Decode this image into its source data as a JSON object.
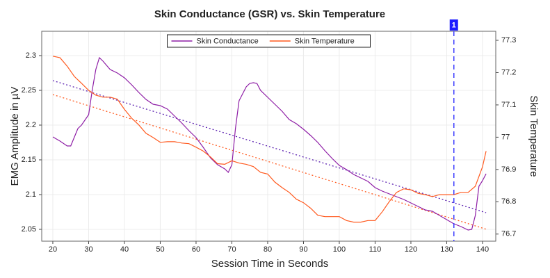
{
  "chart_data": {
    "type": "line",
    "title": "Skin Conductance (GSR) vs. Skin Temperature",
    "x_label": "Session Time in Seconds",
    "y_label": "EMG Amplitude in µV",
    "y2_label": "Skin Temperature",
    "xlim": [
      16.9,
      143.7
    ],
    "xticks": [
      20,
      30,
      40,
      50,
      60,
      70,
      80,
      90,
      100,
      110,
      120,
      130,
      140
    ],
    "ylim": [
      2.033,
      2.335
    ],
    "yticks": [
      2.05,
      2.1,
      2.15,
      2.2,
      2.25,
      2.3
    ],
    "y2lim": [
      76.678,
      77.328
    ],
    "y2ticks": [
      76.7,
      76.8,
      76.9,
      77,
      77.1,
      77.2,
      77.3
    ],
    "grid": true,
    "legend": "top",
    "series": [
      {
        "name": "Skin Conductance",
        "color": "#8e1ea6",
        "x": [
          20,
          22,
          24,
          25,
          27,
          28,
          30,
          31,
          32,
          33,
          34,
          36,
          38,
          40,
          42,
          44,
          46,
          48,
          50,
          52,
          54,
          56,
          58,
          60,
          62,
          64,
          66,
          68,
          69,
          70,
          71,
          72,
          74,
          75,
          76,
          77,
          78,
          80,
          82,
          84,
          86,
          88,
          90,
          92,
          94,
          96,
          98,
          100,
          102,
          104,
          106,
          108,
          110,
          112,
          114,
          116,
          118,
          120,
          122,
          124,
          126,
          128,
          130,
          132,
          134,
          136,
          137,
          138,
          139,
          140,
          141
        ],
        "values": [
          2.183,
          2.177,
          2.17,
          2.17,
          2.195,
          2.2,
          2.215,
          2.25,
          2.28,
          2.297,
          2.292,
          2.28,
          2.275,
          2.268,
          2.258,
          2.247,
          2.237,
          2.23,
          2.228,
          2.223,
          2.213,
          2.203,
          2.192,
          2.182,
          2.168,
          2.153,
          2.143,
          2.137,
          2.132,
          2.143,
          2.195,
          2.235,
          2.255,
          2.26,
          2.261,
          2.26,
          2.25,
          2.24,
          2.23,
          2.22,
          2.208,
          2.202,
          2.194,
          2.185,
          2.175,
          2.163,
          2.152,
          2.142,
          2.136,
          2.129,
          2.124,
          2.119,
          2.11,
          2.105,
          2.101,
          2.097,
          2.093,
          2.088,
          2.083,
          2.078,
          2.076,
          2.07,
          2.064,
          2.058,
          2.054,
          2.049,
          2.05,
          2.07,
          2.112,
          2.12,
          2.13
        ]
      },
      {
        "name": "Skin Temperature",
        "color": "#ff5a1f",
        "axis": "y2",
        "x": [
          20,
          22,
          24,
          26,
          28,
          30,
          32,
          34,
          36,
          38,
          40,
          42,
          44,
          46,
          48,
          50,
          52,
          54,
          56,
          58,
          60,
          62,
          64,
          66,
          68,
          70,
          72,
          74,
          76,
          78,
          80,
          82,
          84,
          86,
          88,
          90,
          92,
          94,
          96,
          98,
          100,
          102,
          104,
          106,
          108,
          110,
          112,
          114,
          116,
          118,
          120,
          122,
          124,
          126,
          128,
          130,
          132,
          134,
          136,
          138,
          140,
          141
        ],
        "values": [
          77.251,
          77.246,
          77.22,
          77.188,
          77.167,
          77.145,
          77.13,
          77.124,
          77.124,
          77.118,
          77.086,
          77.059,
          77.038,
          77.012,
          76.999,
          76.984,
          76.986,
          76.986,
          76.982,
          76.98,
          76.969,
          76.957,
          76.939,
          76.918,
          76.916,
          76.927,
          76.92,
          76.916,
          76.909,
          76.891,
          76.886,
          76.861,
          76.844,
          76.829,
          76.808,
          76.797,
          76.78,
          76.758,
          76.754,
          76.754,
          76.754,
          76.742,
          76.737,
          76.737,
          76.742,
          76.742,
          76.769,
          76.801,
          76.829,
          76.84,
          76.837,
          76.826,
          76.822,
          76.816,
          76.822,
          76.822,
          76.822,
          76.829,
          76.829,
          76.848,
          76.908,
          76.957
        ]
      }
    ],
    "trend_lines": [
      {
        "color": "#5a1fb0",
        "x": [
          20,
          141
        ],
        "values": [
          2.264,
          2.074
        ]
      },
      {
        "color": "#ff5a1f",
        "axis": "y2",
        "x": [
          20,
          141
        ],
        "values": [
          77.132,
          76.715
        ]
      }
    ],
    "markers": [
      {
        "x": 132,
        "label": "1",
        "color": "#3b3bff"
      }
    ]
  }
}
